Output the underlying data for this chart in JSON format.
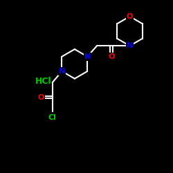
{
  "background_color": "#000000",
  "bond_color": "#ffffff",
  "bond_width": 1.5,
  "atom_colors": {
    "O": "#ff0000",
    "N": "#0000ff",
    "Cl": "#00cc00",
    "HCl": "#00cc00"
  },
  "font_size_atom": 8,
  "fig_width": 2.5,
  "fig_height": 2.5,
  "dpi": 100
}
